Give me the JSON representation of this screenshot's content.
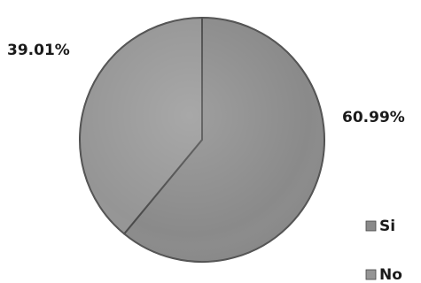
{
  "chart_data": {
    "type": "pie",
    "title": "",
    "categories": [
      "Si",
      "No"
    ],
    "values": [
      60.99,
      39.01
    ],
    "labels": [
      "60.99%",
      "39.01%"
    ],
    "colors": [
      "#8a8a8a",
      "#959595"
    ],
    "legend_placement": "bottom-right"
  }
}
